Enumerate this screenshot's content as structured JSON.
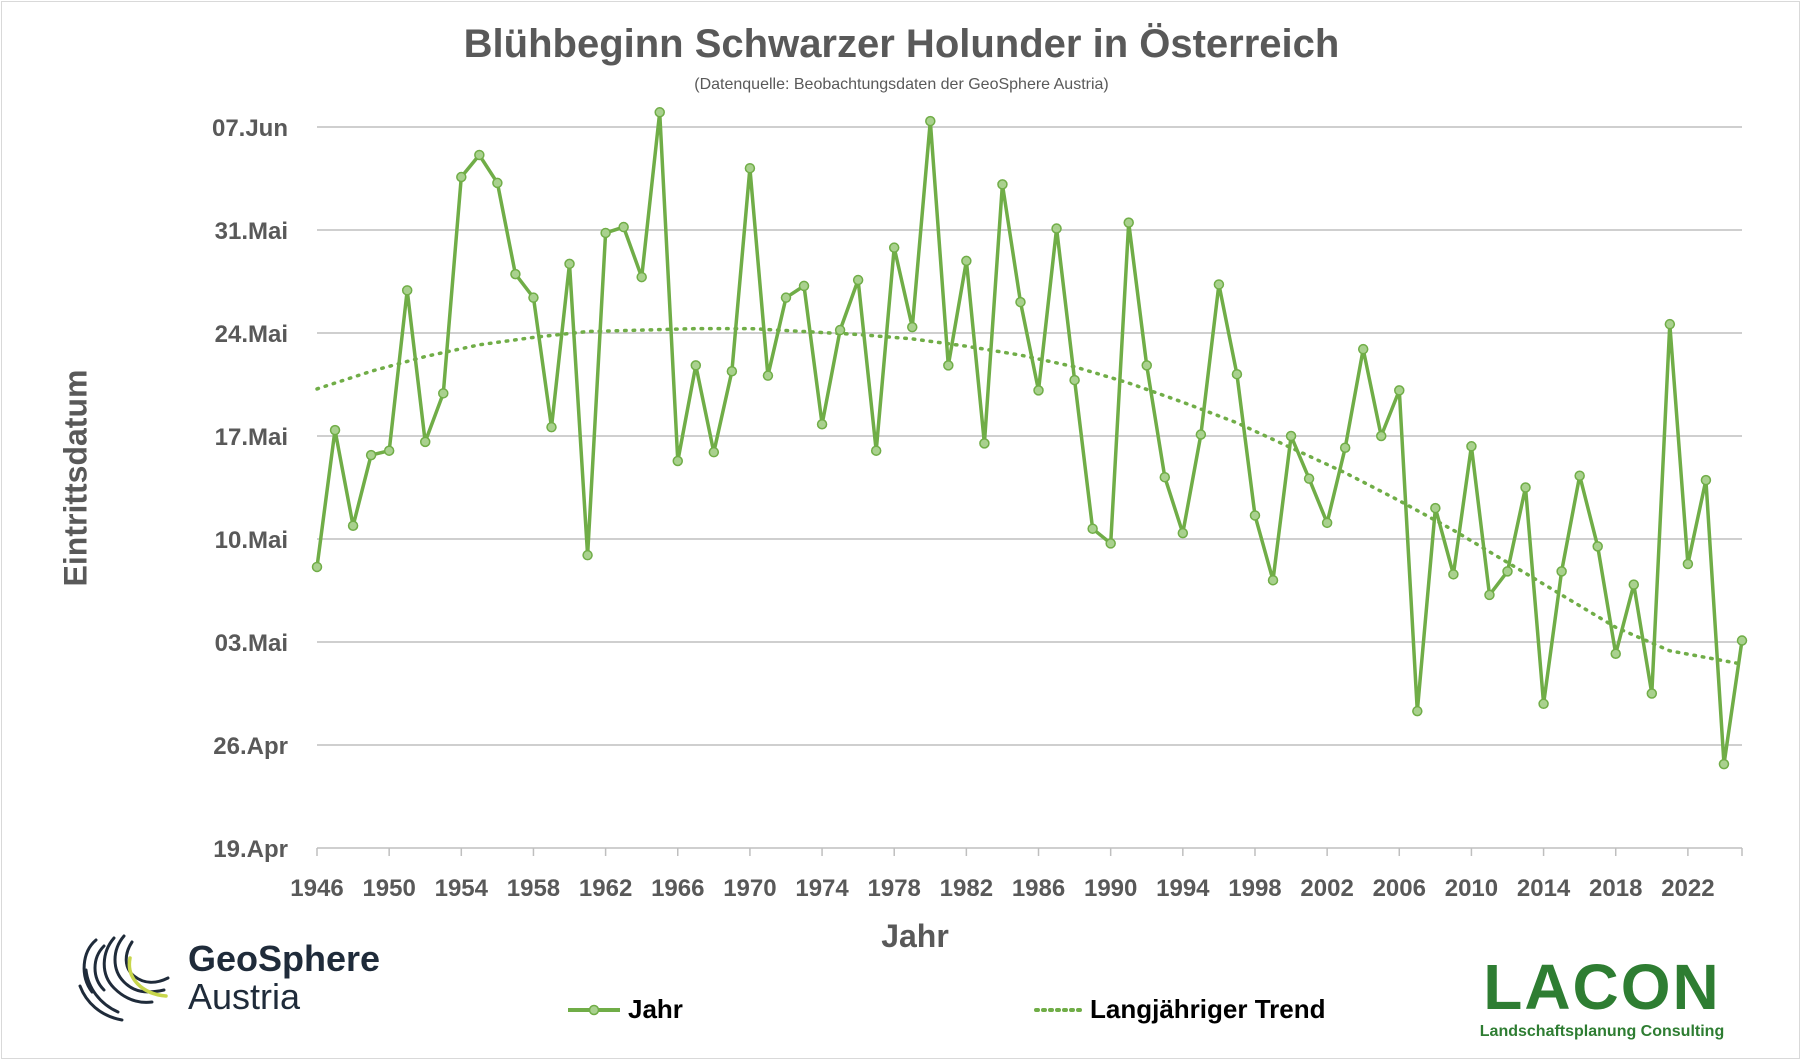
{
  "title": "Blühbeginn Schwarzer Holunder in Österreich",
  "subtitle": "(Datenquelle: Beobachtungsdaten der GeoSphere Austria)",
  "colors": {
    "series": "#70ad47",
    "marker_fill": "#a9d18e",
    "trend": "#70ad47",
    "grid": "#bfbfbf",
    "text": "#595959"
  },
  "legend": {
    "series_label": "Jahr",
    "trend_label": "Langjähriger Trend"
  },
  "logos": {
    "geosphere": {
      "line1": "GeoSphere",
      "line2": "Austria"
    },
    "lacon": {
      "name": "LACON",
      "tagline": "Landschaftsplanung Consulting"
    }
  },
  "chart_data": {
    "type": "line",
    "title": "Blühbeginn Schwarzer Holunder in Österreich",
    "xlabel": "Jahr",
    "ylabel": "Eintrittsdatum",
    "xlim": [
      1946,
      2025
    ],
    "ylim": [
      109,
      158
    ],
    "x_ticks": [
      1946,
      1950,
      1954,
      1958,
      1962,
      1966,
      1970,
      1974,
      1978,
      1982,
      1986,
      1990,
      1994,
      1998,
      2002,
      2006,
      2010,
      2014,
      2018,
      2022
    ],
    "y_ticks": [
      {
        "value": 109,
        "label": "19.Apr"
      },
      {
        "value": 116,
        "label": "26.Apr"
      },
      {
        "value": 123,
        "label": "03.Mai"
      },
      {
        "value": 130,
        "label": "10.Mai"
      },
      {
        "value": 137,
        "label": "17.Mai"
      },
      {
        "value": 144,
        "label": "24.Mai"
      },
      {
        "value": 151,
        "label": "31.Mai"
      },
      {
        "value": 158,
        "label": "07.Jun"
      }
    ],
    "y_unit": "day of year",
    "grid": true,
    "legend_position": "bottom",
    "series": [
      {
        "name": "Jahr",
        "style": "solid-markers",
        "x": [
          1946,
          1947,
          1948,
          1949,
          1950,
          1951,
          1952,
          1953,
          1954,
          1955,
          1956,
          1957,
          1958,
          1959,
          1960,
          1961,
          1962,
          1963,
          1964,
          1965,
          1966,
          1967,
          1968,
          1969,
          1970,
          1971,
          1972,
          1973,
          1974,
          1975,
          1976,
          1977,
          1978,
          1979,
          1980,
          1981,
          1982,
          1983,
          1984,
          1985,
          1986,
          1987,
          1988,
          1989,
          1990,
          1991,
          1992,
          1993,
          1994,
          1995,
          1996,
          1997,
          1998,
          1999,
          2000,
          2001,
          2002,
          2003,
          2004,
          2005,
          2006,
          2007,
          2008,
          2009,
          2010,
          2011,
          2012,
          2013,
          2014,
          2015,
          2016,
          2017,
          2018,
          2019,
          2020,
          2021,
          2022,
          2023,
          2024,
          2025
        ],
        "values": [
          128.1,
          137.4,
          130.9,
          135.7,
          136,
          146.9,
          136.6,
          139.9,
          154.6,
          156.1,
          154.2,
          148,
          146.4,
          137.6,
          148.7,
          128.9,
          150.8,
          151.2,
          147.8,
          159,
          135.3,
          141.8,
          135.9,
          141.4,
          155.2,
          141.1,
          146.4,
          147.2,
          137.8,
          144.2,
          147.6,
          136,
          149.8,
          144.4,
          158.4,
          141.8,
          148.9,
          136.5,
          154.1,
          146.1,
          140.1,
          151.1,
          140.8,
          130.7,
          129.7,
          151.5,
          141.8,
          134.2,
          130.4,
          137.1,
          147.3,
          141.2,
          131.6,
          127.2,
          137,
          134.1,
          131.1,
          136.2,
          142.9,
          137,
          140.1,
          118.3,
          132.1,
          127.6,
          136.3,
          126.2,
          127.8,
          133.5,
          118.8,
          127.8,
          134.3,
          129.5,
          122.2,
          126.9,
          119.5,
          144.6,
          128.3,
          134,
          114.7,
          123.1
        ]
      },
      {
        "name": "Langjähriger Trend",
        "style": "dotted",
        "type": "polynomial-trend",
        "x": [
          1946,
          1949,
          1952,
          1955,
          1958,
          1961,
          1964,
          1967,
          1970,
          1973,
          1976,
          1979,
          1982,
          1985,
          1988,
          1991,
          1994,
          1997,
          2000,
          2003,
          2006,
          2009,
          2012,
          2015,
          2018,
          2021,
          2025
        ],
        "values": [
          140.2,
          141.4,
          142.4,
          143.2,
          143.7,
          144.1,
          144.2,
          144.3,
          144.3,
          144.1,
          143.9,
          143.6,
          143.1,
          142.5,
          141.7,
          140.6,
          139.3,
          137.9,
          136.2,
          134.5,
          132.6,
          130.6,
          128.4,
          126.2,
          124,
          122.4,
          121.5
        ]
      }
    ]
  }
}
